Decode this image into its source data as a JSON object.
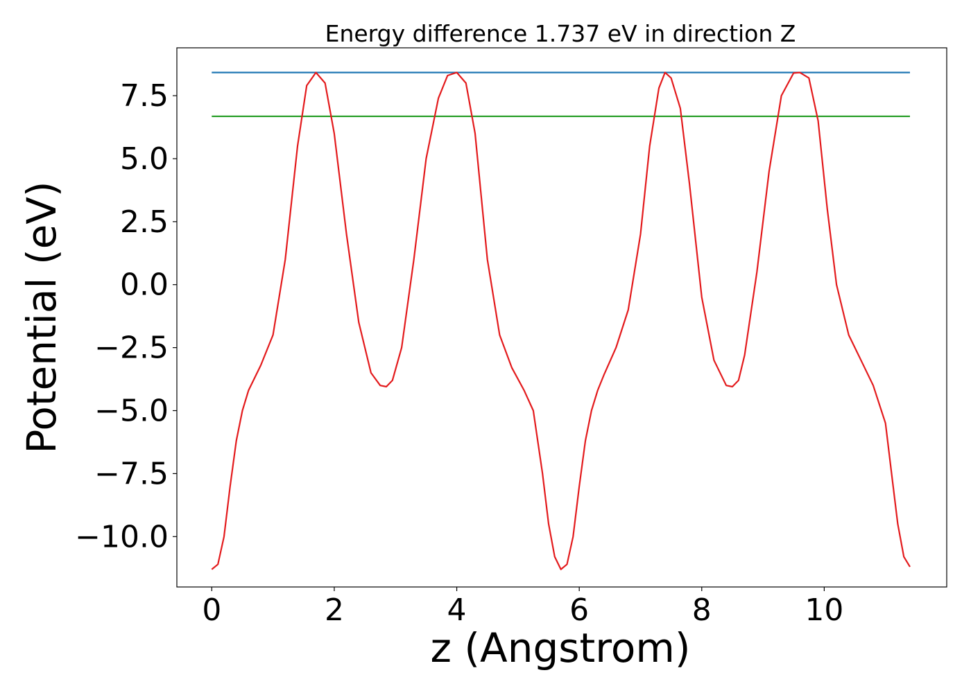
{
  "chart_data": {
    "type": "line",
    "title": "Energy difference 1.737 eV in direction Z",
    "xlabel": "z (Angstrom)",
    "ylabel": "Potential (eV)",
    "xlim": [
      -0.57,
      12.0
    ],
    "ylim": [
      -12.0,
      9.4
    ],
    "grid": false,
    "x_ticks": [
      0,
      2,
      4,
      6,
      8,
      10
    ],
    "x_tick_labels": [
      "0",
      "2",
      "4",
      "6",
      "8",
      "10"
    ],
    "y_ticks": [
      -10.0,
      -7.5,
      -5.0,
      -2.5,
      0.0,
      2.5,
      5.0,
      7.5
    ],
    "y_tick_labels": [
      "−10.0",
      "−7.5",
      "−5.0",
      "−2.5",
      "0.0",
      "2.5",
      "5.0",
      "7.5"
    ],
    "series": [
      {
        "color": "#1f77b4",
        "x": [
          0.0,
          11.4
        ],
        "y": [
          8.42,
          8.42
        ]
      },
      {
        "color": "#2ca02c",
        "x": [
          0.0,
          11.4
        ],
        "y": [
          6.68,
          6.68
        ]
      },
      {
        "color": "#e31a1c",
        "x": [
          0.0,
          0.1,
          0.2,
          0.3,
          0.4,
          0.5,
          0.6,
          0.8,
          1.0,
          1.2,
          1.4,
          1.55,
          1.7,
          1.85,
          2.0,
          2.2,
          2.4,
          2.6,
          2.75,
          2.85,
          2.95,
          3.1,
          3.3,
          3.5,
          3.7,
          3.85,
          4.0,
          4.15,
          4.3,
          4.5,
          4.7,
          4.9,
          5.1,
          5.25,
          5.4,
          5.5,
          5.6,
          5.7,
          5.8,
          5.9,
          6.0,
          6.1,
          6.2,
          6.3,
          6.4,
          6.6,
          6.8,
          7.0,
          7.15,
          7.3,
          7.4,
          7.5,
          7.65,
          7.8,
          8.0,
          8.2,
          8.4,
          8.5,
          8.6,
          8.7,
          8.9,
          9.1,
          9.3,
          9.5,
          9.6,
          9.75,
          9.9,
          10.05,
          10.2,
          10.4,
          10.6,
          10.8,
          11.0,
          11.1,
          11.2,
          11.3,
          11.4
        ],
        "y": [
          -11.3,
          -11.1,
          -10.0,
          -8.0,
          -6.2,
          -5.0,
          -4.2,
          -3.2,
          -2.0,
          1.0,
          5.5,
          7.9,
          8.42,
          8.0,
          6.0,
          2.0,
          -1.5,
          -3.5,
          -4.0,
          -4.05,
          -3.8,
          -2.5,
          1.0,
          5.0,
          7.4,
          8.3,
          8.42,
          8.0,
          6.0,
          1.0,
          -2.0,
          -3.3,
          -4.2,
          -5.0,
          -7.5,
          -9.5,
          -10.8,
          -11.3,
          -11.1,
          -10.0,
          -8.0,
          -6.2,
          -5.0,
          -4.2,
          -3.6,
          -2.5,
          -1.0,
          2.0,
          5.5,
          7.8,
          8.42,
          8.2,
          7.0,
          4.0,
          -0.5,
          -3.0,
          -4.0,
          -4.05,
          -3.8,
          -2.8,
          0.5,
          4.5,
          7.5,
          8.4,
          8.42,
          8.2,
          6.5,
          3.0,
          0.0,
          -2.0,
          -3.0,
          -4.0,
          -5.5,
          -7.5,
          -9.5,
          -10.8,
          -11.2
        ]
      }
    ]
  }
}
